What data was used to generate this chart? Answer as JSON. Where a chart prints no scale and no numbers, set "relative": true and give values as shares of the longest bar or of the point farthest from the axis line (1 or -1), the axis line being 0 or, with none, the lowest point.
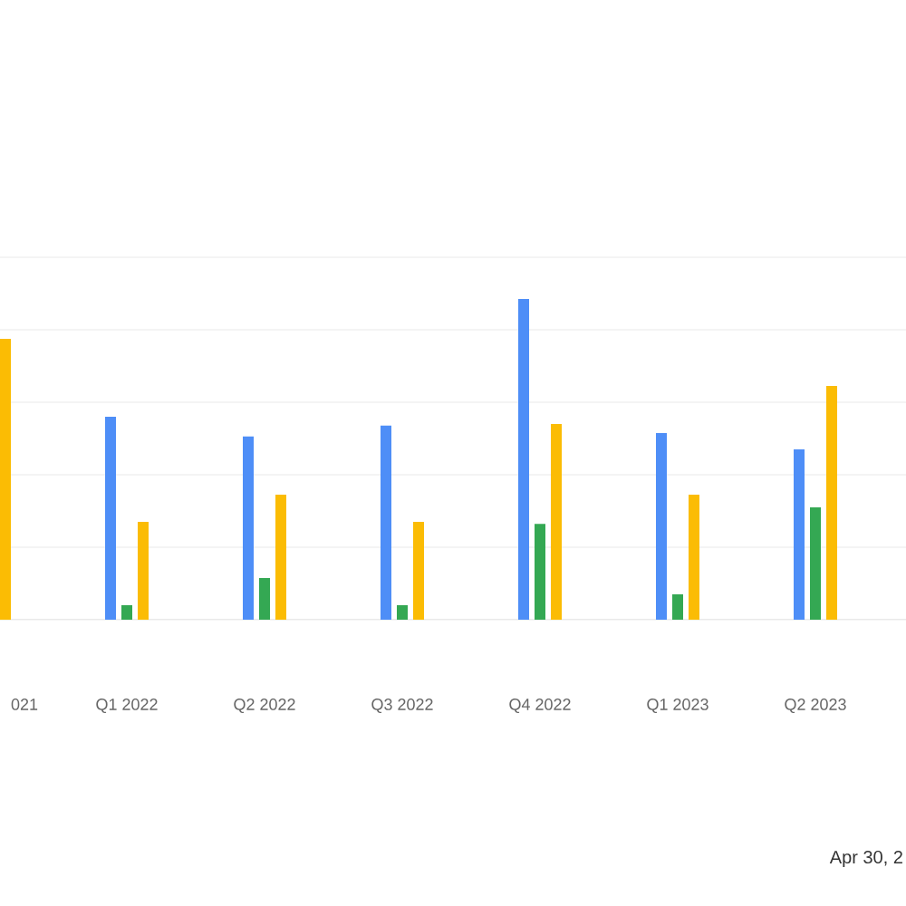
{
  "chart_data": {
    "type": "bar",
    "relative": true,
    "grid": "y",
    "categories": [
      "021",
      "Q1 2022",
      "Q2 2022",
      "Q3 2022",
      "Q4 2022",
      "Q1 2023",
      "Q2 2023"
    ],
    "series": [
      {
        "color": "#4e8ef7",
        "values": [
          null,
          0.633,
          0.571,
          0.605,
          1,
          0.582,
          0.531
        ]
      },
      {
        "color": "#34a853",
        "values": [
          null,
          0.045,
          0.13,
          0.045,
          0.299,
          0.079,
          0.35
        ]
      },
      {
        "color": "#fbbc04",
        "values": [
          0.876,
          0.305,
          0.39,
          0.305,
          0.61,
          0.39,
          0.729
        ]
      }
    ],
    "annotations": [
      "Apr 30, 2"
    ]
  }
}
